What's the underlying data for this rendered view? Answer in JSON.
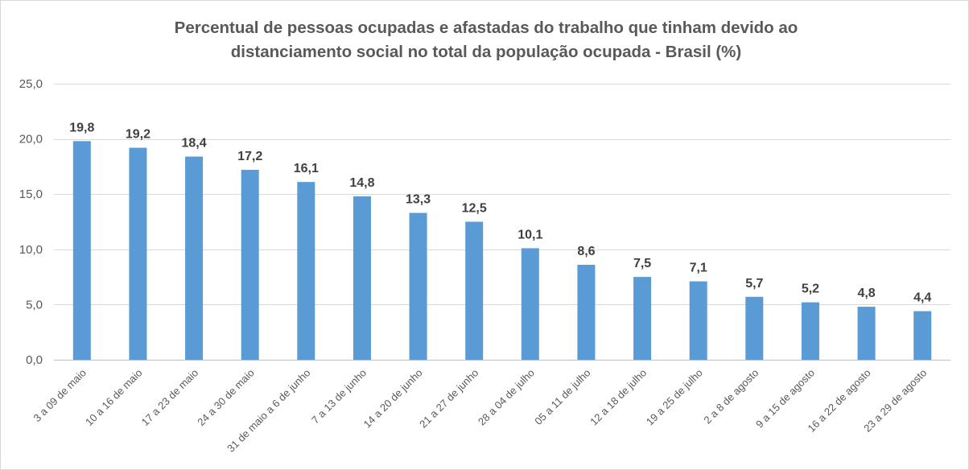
{
  "chart_data": {
    "type": "bar",
    "title_lines": [
      "Percentual de pessoas ocupadas  e afastadas do trabalho que tinham devido ao",
      "distanciamento social no total da população ocupada  - Brasil (%)"
    ],
    "categories": [
      "3 a 09 de maio",
      "10 a 16 de maio",
      "17 a 23 de maio",
      "24 a 30 de maio",
      "31 de maio a 6 de junho",
      "7 a 13 de junho",
      "14 a 20 de junho",
      "21 a 27 de junho",
      "28 a 04 de julho",
      "05 a 11 de julho",
      "12 a 18 de julho",
      "19 a 25 de julho",
      "2 a 8 de agosto",
      "9 a 15 de agosto",
      "16 a 22 de agosto",
      "23 a 29 de agosto"
    ],
    "values": [
      19.8,
      19.2,
      18.4,
      17.2,
      16.1,
      14.8,
      13.3,
      12.5,
      10.1,
      8.6,
      7.5,
      7.1,
      5.7,
      5.2,
      4.8,
      4.4
    ],
    "value_labels": [
      "19,8",
      "19,2",
      "18,4",
      "17,2",
      "16,1",
      "14,8",
      "13,3",
      "12,5",
      "10,1",
      "8,6",
      "7,5",
      "7,1",
      "5,7",
      "5,2",
      "4,8",
      "4,4"
    ],
    "yticks": [
      0,
      5,
      10,
      15,
      20,
      25
    ],
    "ytick_labels": [
      "0,0",
      "5,0",
      "10,0",
      "15,0",
      "20,0",
      "25,0"
    ],
    "ylim": [
      0,
      25
    ],
    "grid": true,
    "legend": "none",
    "bar_color": "#5b9bd5"
  }
}
